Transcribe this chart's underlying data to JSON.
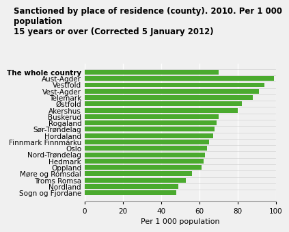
{
  "title_line1": "Sanctioned by place of residence (county). 2010. Per 1 000 population",
  "title_line2": "15 years or over (Corrected 5 January 2012)",
  "xlabel": "Per 1 000 population",
  "categories": [
    "Sogn og Fjordane",
    "Nordland",
    "Troms Romsa",
    "Møre og Romsdal",
    "Oppland",
    "Hedmark",
    "Nord-Trøndelag",
    "Oslo",
    "Finnmark Finnmárku",
    "Hordaland",
    "Sør-Trøndelag",
    "Rogaland",
    "Buskerud",
    "Akershus",
    "Østfold",
    "Telemark",
    "Vest-Agder",
    "Vestfold",
    "Aust-Agder",
    "The whole country"
  ],
  "values": [
    48,
    49,
    53,
    56,
    61,
    62,
    63,
    64,
    65,
    67,
    68,
    69,
    70,
    80,
    82,
    88,
    91,
    94,
    99,
    70
  ],
  "bar_color": "#4aaa2e",
  "background_color": "#f0f0f0",
  "xlim": [
    0,
    100
  ],
  "xticks": [
    0,
    20,
    40,
    60,
    80,
    100
  ],
  "grid_color": "#ffffff",
  "title_fontsize": 8.5,
  "label_fontsize": 8,
  "tick_fontsize": 7.5
}
